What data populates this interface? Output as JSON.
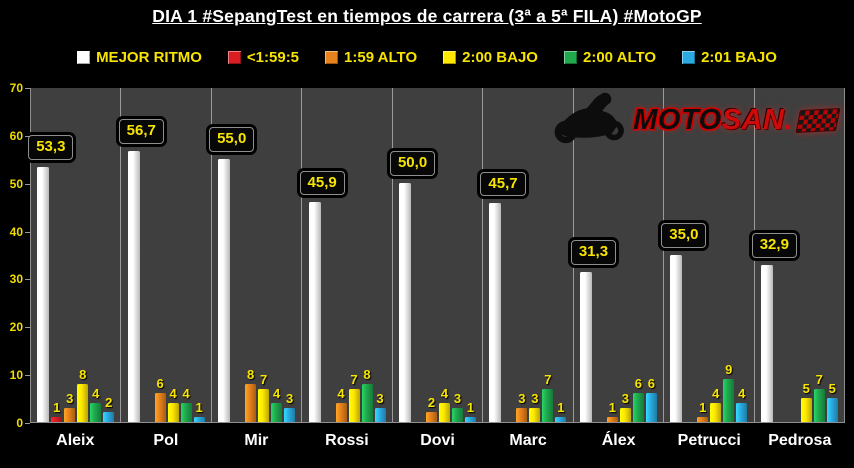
{
  "title": "DIA 1 #SepangTest en tiempos de carrera (3ª a 5ª FILA) #MotoGP",
  "logo": {
    "moto": "MOTO",
    "san": "SAN",
    "dot": "."
  },
  "chart_data": {
    "type": "bar",
    "title": "DIA 1 #SepangTest en tiempos de carrera (3ª a 5ª FILA) #MotoGP",
    "categories": [
      "Aleix",
      "Pol",
      "Mir",
      "Rossi",
      "Dovi",
      "Marc",
      "Álex",
      "Petrucci",
      "Pedrosa"
    ],
    "series": [
      {
        "name": "MEJOR RITMO",
        "color": "#ffffff",
        "values": [
          53.3,
          56.7,
          55.0,
          45.9,
          50.0,
          45.7,
          31.3,
          35.0,
          32.9
        ],
        "value_labels": [
          "53,3",
          "56,7",
          "55,0",
          "45,9",
          "50,0",
          "45,7",
          "31,3",
          "35,0",
          "32,9"
        ]
      },
      {
        "name": "<1:59:5",
        "color": "#d81e22",
        "values": [
          1,
          0,
          0,
          0,
          0,
          0,
          0,
          0,
          0
        ]
      },
      {
        "name": "1:59 ALTO",
        "color": "#e8821c",
        "values": [
          3,
          6,
          8,
          4,
          2,
          3,
          1,
          1,
          0
        ]
      },
      {
        "name": "2:00 BAJO",
        "color": "#ffe800",
        "values": [
          8,
          4,
          7,
          7,
          4,
          3,
          3,
          4,
          5
        ]
      },
      {
        "name": "2:00 ALTO",
        "color": "#1fa84e",
        "values": [
          4,
          4,
          4,
          8,
          3,
          7,
          6,
          9,
          7
        ]
      },
      {
        "name": "2:01 BAJO",
        "color": "#29abe2",
        "values": [
          2,
          1,
          3,
          3,
          1,
          1,
          6,
          4,
          5
        ]
      }
    ],
    "xlabel": "",
    "ylabel": "",
    "ylim": [
      0,
      70
    ],
    "yticks": [
      0,
      10,
      20,
      30,
      40,
      50,
      60,
      70
    ],
    "grid": "vertical-category-separators",
    "legend_position": "top",
    "plot_background": "#3f3f3f",
    "page_background": "#000000",
    "tick_label_color": "#f0dd00",
    "legend_text_color": "#f7e400"
  }
}
